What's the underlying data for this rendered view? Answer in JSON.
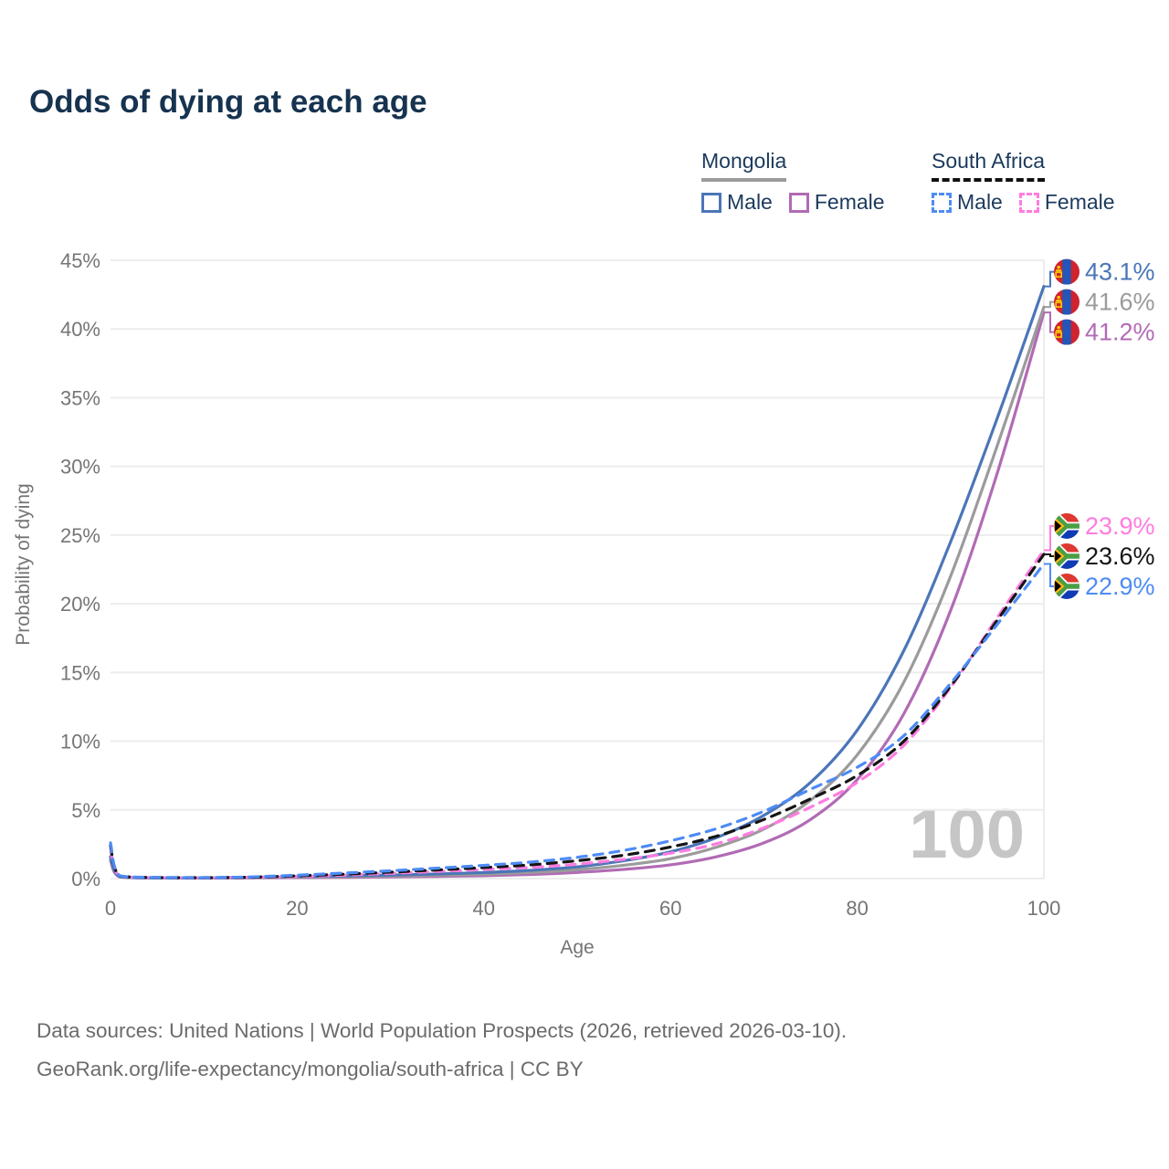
{
  "title": "Odds of dying at each age",
  "legend": {
    "groups": [
      {
        "id": "mongolia",
        "label": "Mongolia",
        "line_style": "solid",
        "line_color": "#9b9b9b",
        "items": [
          {
            "id": "mongolia-male",
            "label": "Male",
            "swatch_color": "#4b76b8",
            "swatch_style": "solid"
          },
          {
            "id": "mongolia-female",
            "label": "Female",
            "swatch_color": "#b16bb4",
            "swatch_style": "solid"
          }
        ]
      },
      {
        "id": "south-africa",
        "label": "South Africa",
        "line_style": "dashed",
        "line_color": "#111111",
        "items": [
          {
            "id": "south-africa-male",
            "label": "Male",
            "swatch_color": "#4e8bf5",
            "swatch_style": "dashed"
          },
          {
            "id": "south-africa-female",
            "label": "Female",
            "swatch_color": "#ff7ce0",
            "swatch_style": "dashed"
          }
        ]
      }
    ]
  },
  "chart_data": {
    "type": "line",
    "title": "Odds of dying at each age",
    "xlabel": "Age",
    "ylabel": "Probability of dying",
    "xlim": [
      0,
      100
    ],
    "ylim": [
      0,
      45
    ],
    "xticks": [
      0,
      20,
      40,
      60,
      80,
      100
    ],
    "yticks": [
      0,
      5,
      10,
      15,
      20,
      25,
      30,
      35,
      40,
      45
    ],
    "ytick_suffix": "%",
    "grid": "horizontal-plus-right-edge",
    "legend_position": "top-right",
    "x": [
      0,
      1,
      5,
      10,
      15,
      20,
      25,
      30,
      35,
      40,
      45,
      50,
      55,
      60,
      65,
      70,
      75,
      80,
      85,
      90,
      95,
      100
    ],
    "series": [
      {
        "name": "Mongolia Female",
        "slug": "mongolia-female",
        "color": "#b16bb4",
        "dash": "solid",
        "flag": "mongolia",
        "end_label": "41.2%",
        "end_value": 41.2,
        "values": [
          1.3,
          0.12,
          0.04,
          0.03,
          0.05,
          0.07,
          0.09,
          0.12,
          0.16,
          0.21,
          0.3,
          0.45,
          0.67,
          1.0,
          1.6,
          2.6,
          4.3,
          7.2,
          12.0,
          19.5,
          29.5,
          41.2
        ]
      },
      {
        "name": "Mongolia Overall",
        "slug": "mongolia-overall",
        "color": "#9b9b9b",
        "dash": "solid",
        "flag": "mongolia",
        "end_label": "41.6%",
        "end_value": 41.6,
        "values": [
          1.45,
          0.13,
          0.045,
          0.04,
          0.07,
          0.11,
          0.14,
          0.19,
          0.24,
          0.32,
          0.45,
          0.65,
          0.97,
          1.45,
          2.3,
          3.6,
          5.7,
          9.0,
          14.3,
          22.0,
          31.5,
          41.6
        ]
      },
      {
        "name": "Mongolia Male",
        "slug": "mongolia-male",
        "color": "#4b76b8",
        "dash": "solid",
        "flag": "mongolia",
        "end_label": "43.1%",
        "end_value": 43.1,
        "values": [
          1.6,
          0.15,
          0.05,
          0.05,
          0.09,
          0.15,
          0.2,
          0.26,
          0.33,
          0.44,
          0.6,
          0.85,
          1.3,
          1.95,
          3.0,
          4.6,
          7.0,
          10.8,
          16.6,
          24.5,
          33.5,
          43.1
        ]
      },
      {
        "name": "South Africa Female",
        "slug": "south-africa-female",
        "color": "#ff7ce0",
        "dash": "dashed",
        "flag": "south-africa",
        "end_label": "23.9%",
        "end_value": 23.9,
        "values": [
          2.2,
          0.18,
          0.07,
          0.06,
          0.09,
          0.15,
          0.25,
          0.38,
          0.52,
          0.66,
          0.82,
          1.05,
          1.4,
          1.85,
          2.55,
          3.7,
          5.2,
          7.0,
          9.7,
          13.9,
          19.0,
          23.9
        ]
      },
      {
        "name": "South Africa Overall",
        "slug": "south-africa-overall",
        "color": "#151515",
        "dash": "dashed",
        "flag": "south-africa",
        "end_label": "23.6%",
        "end_value": 23.6,
        "values": [
          2.4,
          0.19,
          0.075,
          0.065,
          0.1,
          0.2,
          0.32,
          0.47,
          0.63,
          0.8,
          1.0,
          1.3,
          1.7,
          2.3,
          3.1,
          4.3,
          5.8,
          7.5,
          10.0,
          14.0,
          18.8,
          23.6
        ]
      },
      {
        "name": "South Africa Male",
        "slug": "south-africa-male",
        "color": "#4e8bf5",
        "dash": "dashed",
        "flag": "south-africa",
        "end_label": "22.9%",
        "end_value": 22.9,
        "values": [
          2.6,
          0.2,
          0.08,
          0.07,
          0.12,
          0.25,
          0.4,
          0.57,
          0.76,
          0.96,
          1.2,
          1.55,
          2.05,
          2.75,
          3.65,
          4.9,
          6.5,
          8.1,
          10.4,
          14.2,
          18.5,
          22.9
        ]
      }
    ]
  },
  "watermark": "100",
  "flag_colors": {
    "mongolia": {
      "red": "#cf2330",
      "blue": "#2456b8",
      "yellow": "#f9cf02"
    },
    "south_africa": {
      "red": "#de3831",
      "blue": "#0f3bb4",
      "green": "#4a9e45",
      "gold": "#ffb612",
      "black": "#000000",
      "white": "#ffffff"
    }
  },
  "footer": {
    "line1": "Data sources: United Nations | World Population Prospects (2026, retrieved 2026-03-10).",
    "line2": "GeoRank.org/life-expectancy/mongolia/south-africa | CC BY"
  }
}
